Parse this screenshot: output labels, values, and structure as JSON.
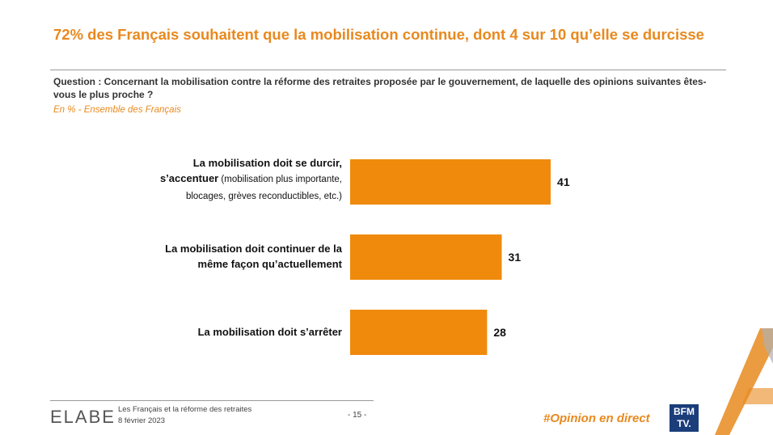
{
  "title": "72% des Français souhaitent que la mobilisation continue, dont 4 sur 10 qu’elle se durcisse",
  "question": "Question : Concernant la mobilisation contre la réforme des retraites proposée par le gouvernement, de laquelle des opinions suivantes êtes-vous le plus proche ?",
  "subtitle": "En % - Ensemble des Français",
  "chart_data": {
    "type": "bar",
    "orientation": "horizontal",
    "categories": [
      "La mobilisation doit se durcir, s’accentuer (mobilisation plus importante, blocages, grèves reconductibles, etc.)",
      "La mobilisation doit continuer de la même façon qu’actuellement",
      "La mobilisation doit s’arrêter"
    ],
    "category_lines": [
      {
        "bold1": "La mobilisation doit se durcir,",
        "bold2": "s’accentuer",
        "rest2": " (mobilisation plus importante,",
        "line3": "blocages, grèves reconductibles, etc.)"
      },
      {
        "bold1": "La mobilisation doit continuer de la",
        "bold2": "même façon qu’actuellement"
      },
      {
        "bold1": "La mobilisation doit s’arrêter"
      }
    ],
    "values": [
      41,
      31,
      28
    ],
    "unit": "%",
    "xlim": [
      0,
      100
    ],
    "bar_color": "#f08a0c"
  },
  "footer": {
    "logo": "ELABE",
    "report_title": "Les Français et la réforme des retraites",
    "date": "8 février 2023",
    "page": "- 15 -",
    "hashtag": "#Opinion en direct",
    "bfm_line1": "BFM",
    "bfm_line2": "TV."
  },
  "colors": {
    "accent": "#e8891e",
    "bfm_blue": "#1b3d7a"
  }
}
